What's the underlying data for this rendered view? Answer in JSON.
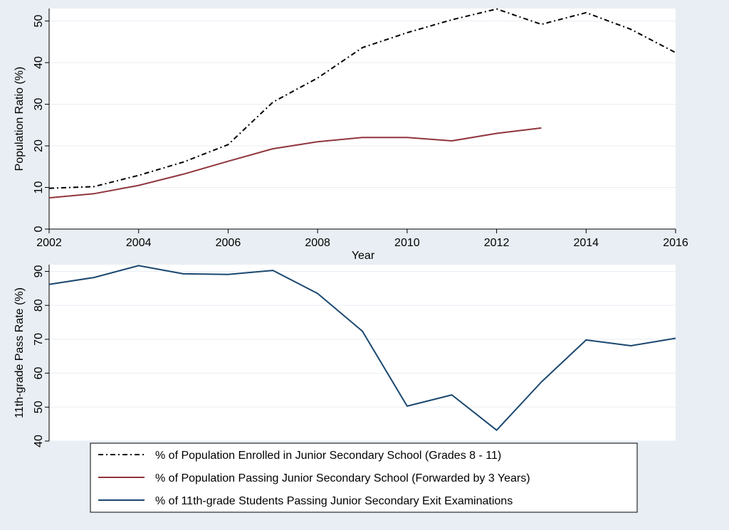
{
  "colors": {
    "background": "#e8eef3",
    "plot_background": "#ffffff",
    "grid": "#e8eef3",
    "enrolled": "#000000",
    "passing": "#90353b",
    "exam": "#1a476f"
  },
  "chart_data": [
    {
      "id": "top",
      "type": "line",
      "xlabel": "Year",
      "ylabel": "Population Ratio (%)",
      "xlim": [
        2002,
        2016
      ],
      "ylim": [
        0,
        53
      ],
      "xticks": [
        2002,
        2004,
        2006,
        2008,
        2010,
        2012,
        2014,
        2016
      ],
      "yticks": [
        0,
        10,
        20,
        30,
        40,
        50
      ],
      "grid": true,
      "series": [
        {
          "name": "% of Population Enrolled in Junior Secondary School (Grades 8 - 11)",
          "style": "dashdot",
          "color": "#000000",
          "x": [
            2002,
            2003,
            2004,
            2005,
            2006,
            2007,
            2008,
            2009,
            2010,
            2011,
            2012,
            2013,
            2014,
            2015,
            2016
          ],
          "y": [
            9.8,
            10.2,
            12.9,
            16.1,
            20.3,
            30.5,
            36.3,
            43.6,
            47.2,
            50.3,
            52.9,
            49.2,
            52.0,
            48.0,
            42.4
          ]
        },
        {
          "name": "% of Population Passing Junior Secondary School (Forwarded by 3 Years)",
          "style": "solid",
          "color": "#90353b",
          "x": [
            2002,
            2003,
            2004,
            2005,
            2006,
            2007,
            2008,
            2009,
            2010,
            2011,
            2012,
            2013
          ],
          "y": [
            7.5,
            8.5,
            10.5,
            13.2,
            16.3,
            19.3,
            21.0,
            22.0,
            22.0,
            21.2,
            23.0,
            24.3
          ]
        }
      ]
    },
    {
      "id": "bottom",
      "type": "line",
      "xlabel": "",
      "ylabel": "11th-grade Pass Rate (%)",
      "xlim": [
        2002,
        2016
      ],
      "ylim": [
        40,
        92
      ],
      "yticks": [
        40,
        50,
        60,
        70,
        80,
        90
      ],
      "grid": true,
      "series": [
        {
          "name": "% of 11th-grade Students Passing Junior Secondary Exit Examinations",
          "style": "solid",
          "color": "#1a476f",
          "x": [
            2002,
            2003,
            2004,
            2005,
            2006,
            2007,
            2008,
            2009,
            2010,
            2011,
            2012,
            2013,
            2014,
            2015,
            2016
          ],
          "y": [
            86.2,
            88.2,
            91.7,
            89.3,
            89.1,
            90.3,
            83.5,
            72.4,
            50.3,
            53.6,
            43.2,
            57.4,
            69.8,
            68.1,
            70.3
          ]
        }
      ]
    }
  ],
  "legend": {
    "placement": "bottom",
    "items": [
      "% of Population Enrolled in Junior Secondary School (Grades 8 - 11)",
      "% of Population Passing Junior Secondary School (Forwarded by 3 Years)",
      "% of 11th-grade Students Passing Junior Secondary Exit Examinations"
    ]
  }
}
